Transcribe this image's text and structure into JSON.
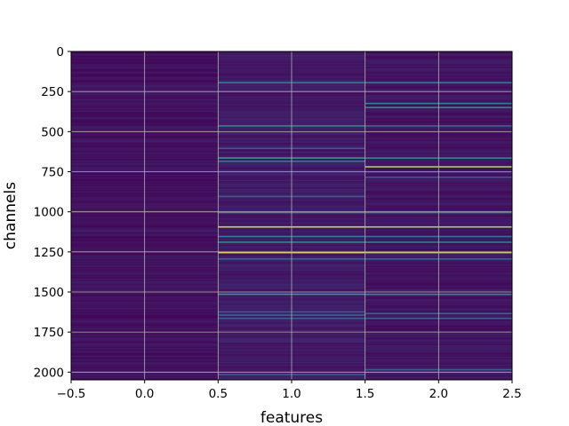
{
  "chart_data": {
    "type": "heatmap",
    "title": "",
    "xlabel": "features",
    "ylabel": "channels",
    "xlim": [
      -0.5,
      2.5
    ],
    "ylim": [
      2048,
      0
    ],
    "y_inverted": true,
    "grid": true,
    "colormap": "viridis",
    "columns": [
      0,
      1,
      2
    ],
    "rows_total": 2048,
    "x_ticks": [
      -0.5,
      0.0,
      0.5,
      1.0,
      1.5,
      2.0,
      2.5
    ],
    "x_tick_labels": [
      "−0.5",
      "0.0",
      "0.5",
      "1.0",
      "1.5",
      "2.0",
      "2.5"
    ],
    "y_ticks": [
      0,
      250,
      500,
      750,
      1000,
      1250,
      1500,
      1750,
      2000
    ],
    "y_tick_labels": [
      "0",
      "250",
      "500",
      "750",
      "1000",
      "1250",
      "1500",
      "1750",
      "2000"
    ],
    "column_base_level": [
      0.05,
      0.08,
      0.06
    ],
    "highlights": [
      {
        "column": 1,
        "channel": 190,
        "value": 0.45
      },
      {
        "column": 1,
        "channel": 460,
        "value": 0.5
      },
      {
        "column": 1,
        "channel": 600,
        "value": 0.3
      },
      {
        "column": 1,
        "channel": 660,
        "value": 0.55
      },
      {
        "column": 1,
        "channel": 680,
        "value": 0.45
      },
      {
        "column": 1,
        "channel": 900,
        "value": 0.3
      },
      {
        "column": 1,
        "channel": 1000,
        "value": 0.5
      },
      {
        "column": 1,
        "channel": 1090,
        "value": 0.9
      },
      {
        "column": 1,
        "channel": 1150,
        "value": 0.45
      },
      {
        "column": 1,
        "channel": 1185,
        "value": 0.5
      },
      {
        "column": 1,
        "channel": 1250,
        "value": 0.95
      },
      {
        "column": 1,
        "channel": 1290,
        "value": 0.35
      },
      {
        "column": 1,
        "channel": 1510,
        "value": 0.55
      },
      {
        "column": 1,
        "channel": 1620,
        "value": 0.3
      },
      {
        "column": 1,
        "channel": 1640,
        "value": 0.35
      },
      {
        "column": 1,
        "channel": 1660,
        "value": 0.3
      },
      {
        "column": 1,
        "channel": 2010,
        "value": 0.3
      },
      {
        "column": 2,
        "channel": 190,
        "value": 0.45
      },
      {
        "column": 2,
        "channel": 320,
        "value": 0.45
      },
      {
        "column": 2,
        "channel": 345,
        "value": 0.5
      },
      {
        "column": 2,
        "channel": 460,
        "value": 0.35
      },
      {
        "column": 2,
        "channel": 660,
        "value": 0.5
      },
      {
        "column": 2,
        "channel": 715,
        "value": 0.85
      },
      {
        "column": 2,
        "channel": 780,
        "value": 0.3
      },
      {
        "column": 2,
        "channel": 1000,
        "value": 0.45
      },
      {
        "column": 2,
        "channel": 1090,
        "value": 0.85
      },
      {
        "column": 2,
        "channel": 1150,
        "value": 0.4
      },
      {
        "column": 2,
        "channel": 1185,
        "value": 0.45
      },
      {
        "column": 2,
        "channel": 1250,
        "value": 0.9
      },
      {
        "column": 2,
        "channel": 1290,
        "value": 0.35
      },
      {
        "column": 2,
        "channel": 1510,
        "value": 0.5
      },
      {
        "column": 2,
        "channel": 1630,
        "value": 0.35
      },
      {
        "column": 2,
        "channel": 1660,
        "value": 0.3
      },
      {
        "column": 2,
        "channel": 1980,
        "value": 0.3
      }
    ]
  }
}
